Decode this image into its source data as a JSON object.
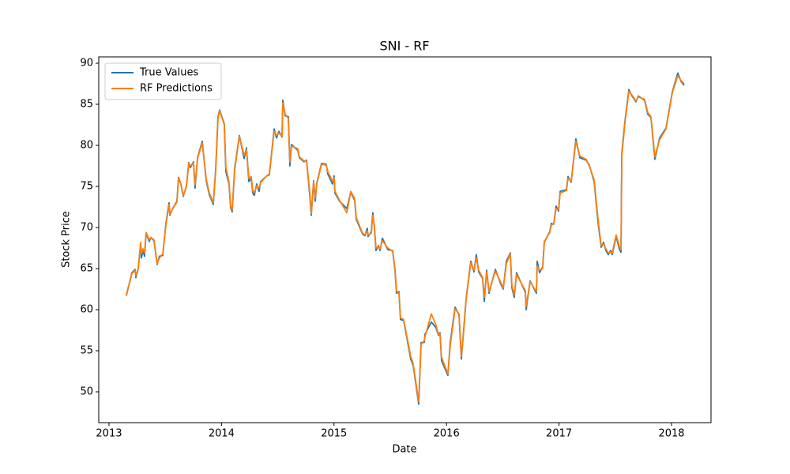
{
  "chart_data": {
    "type": "line",
    "title": "SNI - RF",
    "x_label": "Date",
    "y_label": "Stock Price",
    "x": [
      2013.154,
      2013.204,
      2013.232,
      2013.239,
      2013.26,
      2013.281,
      2013.288,
      2013.302,
      2013.316,
      2013.33,
      2013.358,
      2013.372,
      2013.4,
      2013.428,
      2013.449,
      2013.478,
      2013.506,
      2013.534,
      2013.541,
      2013.562,
      2013.604,
      2013.618,
      2013.639,
      2013.66,
      2013.688,
      2013.709,
      2013.723,
      2013.751,
      2013.765,
      2013.787,
      2013.829,
      2013.864,
      2013.892,
      2013.927,
      2013.948,
      2013.969,
      2013.983,
      2014.025,
      2014.039,
      2014.067,
      2014.081,
      2014.095,
      2014.117,
      2014.159,
      2014.201,
      2014.222,
      2014.243,
      2014.264,
      2014.278,
      2014.292,
      2014.313,
      2014.334,
      2014.348,
      2014.404,
      2014.425,
      2014.468,
      2014.489,
      2014.51,
      2014.538,
      2014.545,
      2014.566,
      2014.594,
      2014.608,
      2014.622,
      2014.678,
      2014.692,
      2014.734,
      2014.756,
      2014.784,
      2014.798,
      2014.819,
      2014.833,
      2014.847,
      2014.889,
      2014.931,
      2014.945,
      2014.987,
      2015.001,
      2015.008,
      2015.05,
      2015.114,
      2015.149,
      2015.184,
      2015.198,
      2015.254,
      2015.275,
      2015.296,
      2015.303,
      2015.331,
      2015.345,
      2015.359,
      2015.373,
      2015.395,
      2015.409,
      2015.43,
      2015.479,
      2015.521,
      2015.542,
      2015.556,
      2015.577,
      2015.591,
      2015.619,
      2015.682,
      2015.704,
      2015.753,
      2015.774,
      2015.802,
      2015.809,
      2015.865,
      2015.907,
      2015.928,
      2015.942,
      2015.956,
      2016.012,
      2016.033,
      2016.076,
      2016.111,
      2016.132,
      2016.153,
      2016.174,
      2016.216,
      2016.244,
      2016.265,
      2016.286,
      2016.321,
      2016.336,
      2016.357,
      2016.378,
      2016.434,
      2016.483,
      2016.504,
      2016.532,
      2016.567,
      2016.581,
      2016.602,
      2016.623,
      2016.701,
      2016.708,
      2016.743,
      2016.799,
      2016.806,
      2016.827,
      2016.855,
      2016.869,
      2016.918,
      2016.932,
      2016.953,
      2016.974,
      2016.996,
      2017.01,
      2017.066,
      2017.08,
      2017.108,
      2017.15,
      2017.185,
      2017.241,
      2017.269,
      2017.312,
      2017.347,
      2017.375,
      2017.396,
      2017.417,
      2017.438,
      2017.459,
      2017.473,
      2017.508,
      2017.536,
      2017.551,
      2017.558,
      2017.585,
      2017.621,
      2017.649,
      2017.684,
      2017.705,
      2017.761,
      2017.789,
      2017.817,
      2017.852,
      2017.894,
      2017.951,
      2018.007,
      2018.056,
      2018.084,
      2018.112
    ],
    "series": [
      {
        "name": "True Values",
        "color": "#1f77b4",
        "values": [
          61.7,
          64.5,
          64.9,
          63.9,
          65.0,
          68.0,
          66.3,
          67.2,
          66.5,
          69.3,
          68.3,
          68.8,
          68.4,
          65.5,
          66.5,
          66.6,
          70.5,
          73.0,
          71.5,
          72.2,
          73.2,
          76.1,
          75.3,
          73.8,
          75.0,
          77.9,
          77.3,
          78.0,
          74.8,
          78.5,
          80.5,
          75.7,
          74.0,
          72.8,
          77.0,
          83.5,
          84.3,
          82.6,
          76.8,
          75.3,
          72.4,
          71.9,
          77.2,
          81.2,
          78.4,
          79.7,
          75.6,
          76.0,
          74.2,
          73.9,
          75.3,
          74.4,
          75.6,
          76.3,
          76.4,
          82.0,
          80.9,
          81.7,
          81.0,
          85.5,
          83.6,
          83.5,
          77.5,
          80.1,
          79.4,
          78.5,
          78.0,
          78.2,
          74.0,
          71.5,
          75.7,
          73.2,
          75.4,
          77.8,
          77.7,
          76.5,
          75.3,
          76.3,
          74.2,
          73.2,
          72.3,
          74.3,
          73.3,
          71.0,
          69.2,
          69.0,
          69.9,
          68.9,
          69.5,
          71.8,
          70.0,
          67.2,
          67.8,
          67.2,
          68.7,
          67.3,
          67.2,
          64.8,
          62.0,
          62.2,
          58.8,
          58.7,
          54.0,
          53.2,
          48.5,
          56.0,
          56.0,
          57.0,
          58.5,
          57.8,
          56.9,
          57.2,
          53.8,
          52.0,
          56.0,
          60.3,
          59.4,
          54.0,
          57.6,
          61.3,
          65.9,
          64.6,
          66.7,
          64.6,
          63.8,
          61.0,
          64.8,
          62.0,
          64.9,
          63.1,
          62.5,
          65.9,
          66.9,
          62.7,
          61.5,
          64.5,
          62.1,
          60.0,
          63.5,
          62.0,
          65.9,
          64.5,
          65.2,
          68.2,
          69.5,
          70.5,
          70.4,
          72.6,
          72.0,
          74.4,
          74.6,
          76.2,
          75.5,
          80.8,
          78.5,
          78.2,
          77.6,
          75.6,
          70.6,
          67.6,
          68.2,
          67.2,
          66.7,
          67.2,
          66.7,
          68.9,
          67.4,
          67.0,
          79.0,
          82.8,
          86.8,
          86.0,
          85.3,
          86.0,
          85.5,
          83.8,
          83.4,
          78.3,
          80.9,
          82.1,
          86.5,
          88.8,
          87.8,
          87.3
        ]
      },
      {
        "name": "RF Predictions",
        "color": "#ff7f0e",
        "values": [
          61.8,
          64.4,
          64.8,
          64.1,
          65.0,
          68.2,
          66.8,
          67.4,
          66.9,
          69.4,
          68.5,
          68.8,
          68.5,
          65.6,
          66.3,
          66.8,
          70.3,
          72.8,
          71.6,
          72.2,
          73.1,
          76.0,
          75.3,
          73.9,
          75.0,
          77.8,
          77.5,
          77.9,
          75.2,
          78.4,
          80.3,
          75.9,
          74.2,
          73.0,
          76.8,
          83.4,
          84.2,
          82.5,
          77.3,
          75.5,
          72.6,
          72.1,
          77.0,
          81.1,
          78.8,
          79.5,
          76.0,
          76.2,
          74.5,
          74.2,
          75.1,
          74.8,
          75.5,
          76.3,
          76.5,
          81.7,
          81.2,
          81.5,
          81.1,
          85.2,
          83.8,
          83.3,
          78.0,
          79.9,
          79.6,
          78.6,
          78.1,
          78.1,
          74.4,
          71.7,
          75.6,
          73.6,
          75.3,
          77.7,
          77.6,
          76.8,
          75.6,
          76.1,
          74.4,
          73.3,
          71.8,
          74.4,
          73.5,
          71.2,
          69.3,
          69.1,
          69.6,
          69.1,
          69.3,
          71.5,
          70.2,
          67.5,
          67.7,
          67.4,
          68.4,
          67.5,
          67.1,
          65.0,
          62.3,
          62.0,
          59.0,
          58.8,
          54.3,
          53.4,
          48.8,
          55.8,
          56.2,
          56.7,
          59.5,
          58.1,
          57.0,
          57.1,
          54.2,
          52.2,
          55.6,
          60.1,
          59.5,
          54.3,
          57.4,
          61.2,
          65.7,
          64.8,
          66.3,
          64.8,
          63.9,
          61.5,
          64.6,
          62.2,
          64.7,
          63.3,
          62.6,
          65.6,
          66.8,
          63.0,
          61.8,
          64.3,
          62.3,
          60.4,
          63.4,
          62.2,
          65.3,
          64.8,
          65.0,
          68.3,
          69.4,
          70.3,
          70.5,
          72.3,
          72.2,
          74.2,
          74.5,
          76.0,
          75.6,
          80.5,
          78.7,
          78.3,
          77.5,
          75.8,
          71.0,
          67.8,
          68.0,
          67.4,
          66.9,
          67.0,
          66.9,
          69.1,
          67.7,
          67.3,
          78.7,
          82.6,
          86.6,
          86.1,
          85.4,
          85.9,
          85.6,
          84.0,
          83.5,
          78.6,
          80.7,
          82.0,
          86.4,
          88.5,
          87.9,
          87.5
        ]
      }
    ],
    "xlim": [
      2012.909,
      2018.351
    ],
    "xticks": [
      2013,
      2014,
      2015,
      2016,
      2017,
      2018
    ],
    "ylim": [
      46.25,
      90.77
    ],
    "yticks": [
      50,
      55,
      60,
      65,
      70,
      75,
      80,
      85,
      90
    ],
    "legend": "upper left",
    "grid": false
  }
}
